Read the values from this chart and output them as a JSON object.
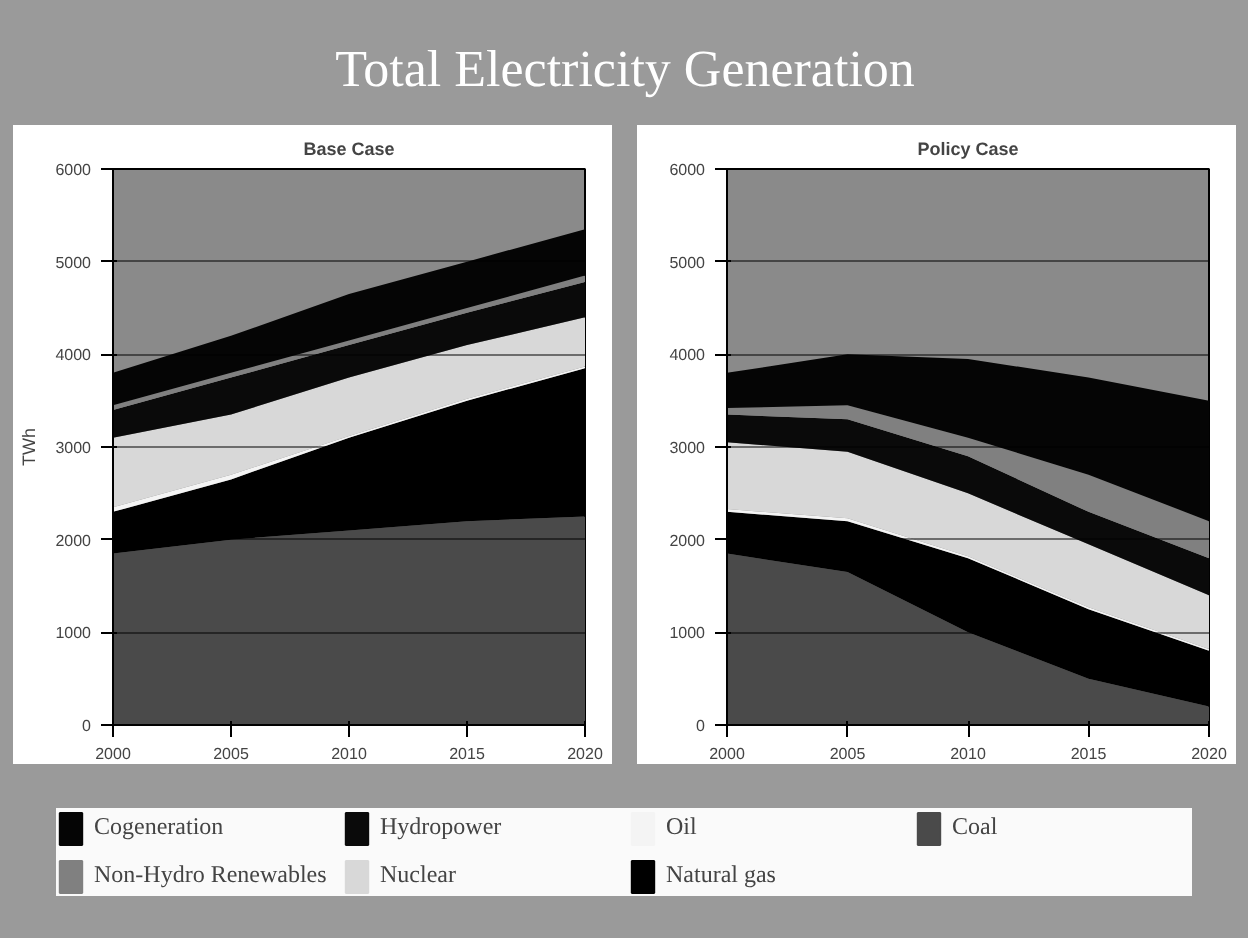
{
  "chart_data": [
    {
      "type": "area",
      "stacked": true,
      "title": "Total Electricity Generation",
      "subtitle": "Base Case",
      "ylabel": "TWh",
      "x": [
        2000,
        2005,
        2010,
        2015,
        2020
      ],
      "xlim": [
        2000,
        2020
      ],
      "ylim": [
        0,
        6000
      ],
      "xticks": [
        2000,
        2005,
        2010,
        2015,
        2020
      ],
      "yticks": [
        0,
        1000,
        2000,
        3000,
        4000,
        5000,
        6000
      ],
      "grid": "y",
      "legend": "bottom",
      "series": [
        {
          "name": "Coal",
          "color": "#4a4a4a",
          "values": [
            1850,
            2000,
            2100,
            2200,
            2250
          ]
        },
        {
          "name": "Natural gas",
          "color": "#000000",
          "values": [
            450,
            650,
            1000,
            1300,
            1600
          ]
        },
        {
          "name": "Oil",
          "color": "#f4f4f4",
          "values": [
            50,
            50,
            20,
            20,
            20
          ]
        },
        {
          "name": "Nuclear",
          "color": "#d8d8d8",
          "values": [
            750,
            650,
            630,
            580,
            530
          ]
        },
        {
          "name": "Hydropower",
          "color": "#0a0a0a",
          "values": [
            300,
            400,
            350,
            350,
            380
          ]
        },
        {
          "name": "Non-Hydro Renewables",
          "color": "#808080",
          "values": [
            50,
            50,
            50,
            50,
            70
          ]
        },
        {
          "name": "Cogeneration",
          "color": "#050505",
          "values": [
            350,
            400,
            500,
            500,
            500
          ]
        }
      ]
    },
    {
      "type": "area",
      "stacked": true,
      "subtitle": "Policy Case",
      "x": [
        2000,
        2005,
        2010,
        2015,
        2020
      ],
      "xlim": [
        2000,
        2020
      ],
      "ylim": [
        0,
        6000
      ],
      "xticks": [
        2000,
        2005,
        2010,
        2015,
        2020
      ],
      "yticks": [
        0,
        1000,
        2000,
        3000,
        4000,
        5000,
        6000
      ],
      "grid": "y",
      "series": [
        {
          "color": "#4a4a4a",
          "values": [
            1850,
            1650,
            1000,
            500,
            200
          ]
        },
        {
          "color": "#000000",
          "values": [
            450,
            550,
            800,
            750,
            600
          ]
        },
        {
          "color": "#f4f4f4",
          "values": [
            30,
            30,
            20,
            20,
            20
          ]
        },
        {
          "color": "#d8d8d8",
          "values": [
            720,
            720,
            680,
            680,
            580
          ]
        },
        {
          "color": "#0a0a0a",
          "values": [
            300,
            350,
            400,
            350,
            400
          ]
        },
        {
          "color": "#808080",
          "values": [
            70,
            150,
            200,
            400,
            400
          ]
        },
        {
          "color": "#050505",
          "values": [
            380,
            550,
            850,
            1050,
            1300
          ]
        }
      ]
    }
  ]
}
